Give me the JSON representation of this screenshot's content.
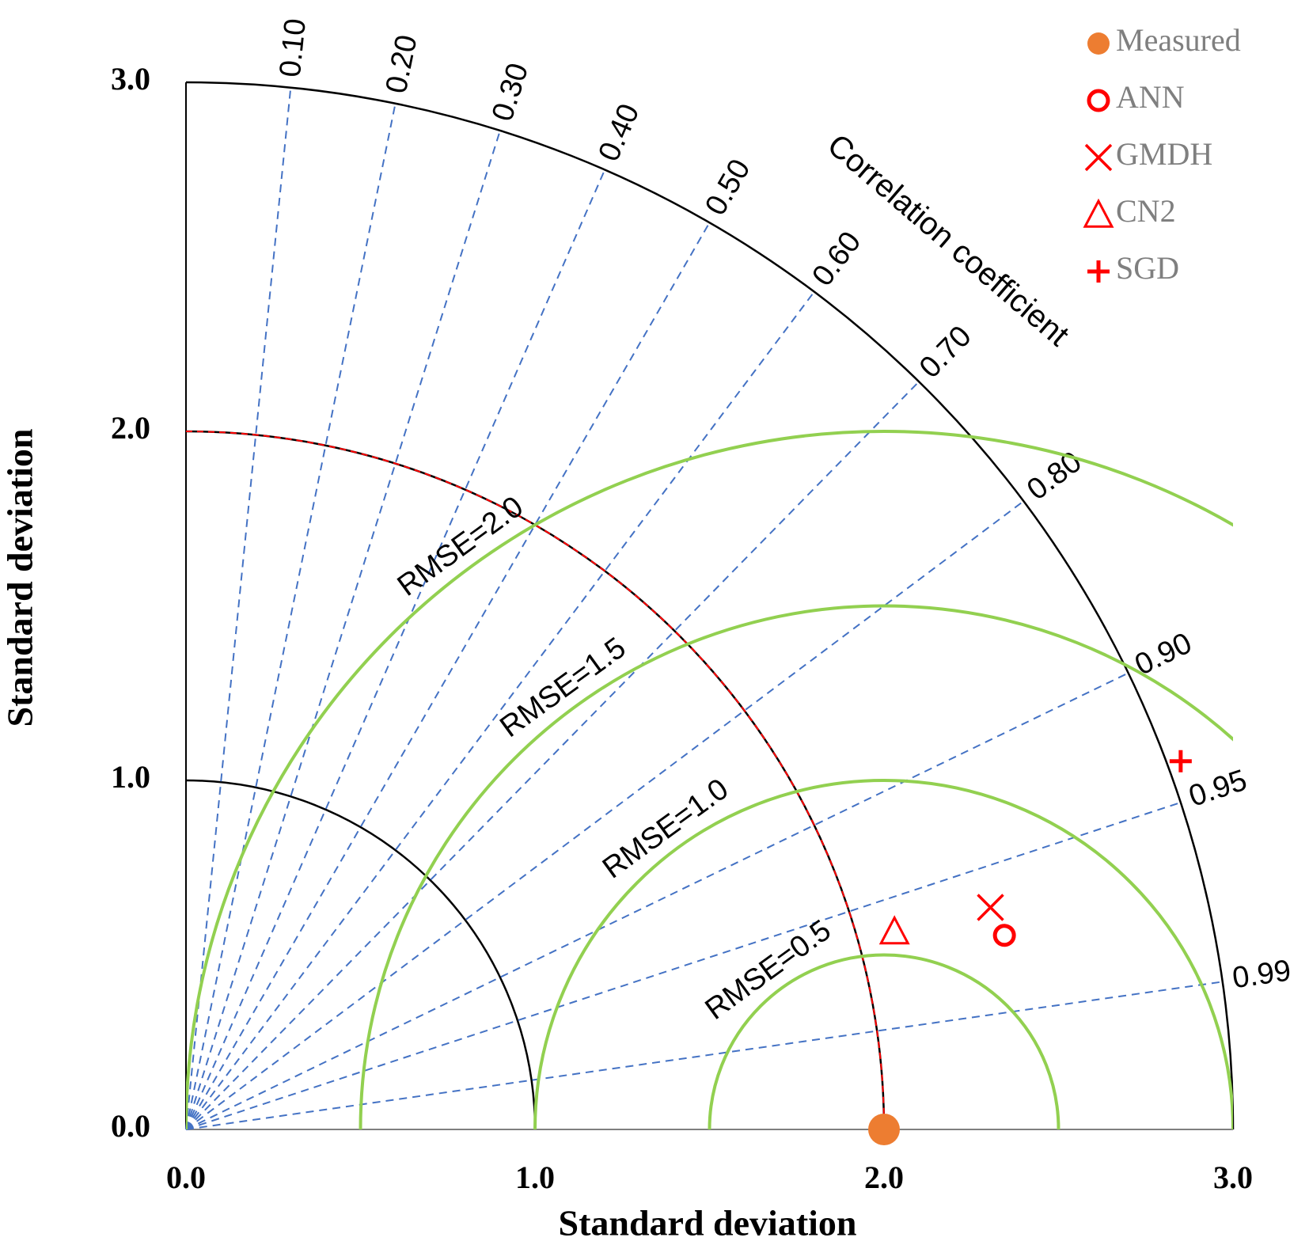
{
  "chart_data": {
    "type": "taylor",
    "xlabel": "Standard deviation",
    "ylabel": "Standard deviation",
    "xlim": [
      0,
      3
    ],
    "ylim": [
      0,
      3
    ],
    "xticks": [
      {
        "value": 0,
        "label": "0.0"
      },
      {
        "value": 1,
        "label": "1.0"
      },
      {
        "value": 2,
        "label": "2.0"
      },
      {
        "value": 3,
        "label": "3.0"
      }
    ],
    "yticks": [
      {
        "value": 0,
        "label": "0.0"
      },
      {
        "value": 1,
        "label": "1.0"
      },
      {
        "value": 2,
        "label": "2.0"
      },
      {
        "value": 3,
        "label": "3.0"
      }
    ],
    "correlation_label": "Correlation coefficient",
    "correlation_ticks": [
      {
        "value": 0.1,
        "label": "0.10"
      },
      {
        "value": 0.2,
        "label": "0.20"
      },
      {
        "value": 0.3,
        "label": "0.30"
      },
      {
        "value": 0.4,
        "label": "0.40"
      },
      {
        "value": 0.5,
        "label": "0.50"
      },
      {
        "value": 0.6,
        "label": "0.60"
      },
      {
        "value": 0.7,
        "label": "0.70"
      },
      {
        "value": 0.8,
        "label": "0.80"
      },
      {
        "value": 0.9,
        "label": "0.90"
      },
      {
        "value": 0.95,
        "label": "0.95"
      },
      {
        "value": 0.99,
        "label": "0.99"
      }
    ],
    "rmse_contours": [
      {
        "value": 0.5,
        "label": "RMSE=0.5"
      },
      {
        "value": 1.0,
        "label": "RMSE=1.0"
      },
      {
        "value": 1.5,
        "label": "RMSE=1.5"
      },
      {
        "value": 2.0,
        "label": "RMSE=2.0"
      }
    ],
    "series": [
      {
        "name": "Measured",
        "color": "#ed7d31",
        "marker": "filled-circle",
        "x": [
          2.0
        ],
        "values": [
          0
        ]
      },
      {
        "name": "ANN",
        "color": "#ff0000",
        "marker": "open-circle",
        "x": [
          2.345
        ],
        "values": [
          0.556
        ]
      },
      {
        "name": "GMDH",
        "color": "#ff0000",
        "marker": "cross",
        "x": [
          2.305
        ],
        "values": [
          0.636
        ]
      },
      {
        "name": "CN2",
        "color": "#ff0000",
        "marker": "triangle",
        "x": [
          2.03
        ],
        "values": [
          0.568
        ]
      },
      {
        "name": "SGD",
        "color": "#ff0000",
        "marker": "plus",
        "x": [
          2.85
        ],
        "values": [
          1.055
        ]
      }
    ]
  }
}
